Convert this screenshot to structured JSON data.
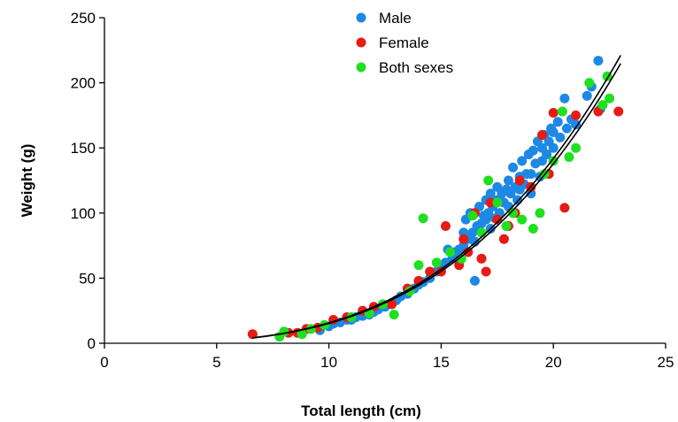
{
  "colors": {
    "male": "#1E88E5",
    "female": "#E51B14",
    "both": "#1FE01F",
    "fit": "#000000"
  },
  "chart_data": {
    "type": "scatter",
    "xlabel": "Total length (cm)",
    "ylabel": "Weight (g)",
    "xlim": [
      0,
      25
    ],
    "ylim": [
      0,
      250
    ],
    "xticks": [
      0,
      5,
      10,
      15,
      20,
      25
    ],
    "yticks": [
      0,
      50,
      100,
      150,
      200,
      250
    ],
    "grid": false,
    "legend_position": "top-center",
    "fit": {
      "model": "W = a * L^b",
      "curves": [
        {
          "a": 0.0105,
          "b": 3.175,
          "x_range": [
            6.6,
            23.0
          ]
        },
        {
          "a": 0.0102,
          "b": 3.175,
          "x_range": [
            6.6,
            23.0
          ]
        }
      ]
    },
    "series": [
      {
        "name": "Male",
        "color": "#1E88E5",
        "points": [
          [
            9.6,
            10
          ],
          [
            10.0,
            13
          ],
          [
            10.2,
            15
          ],
          [
            10.5,
            16
          ],
          [
            10.8,
            18
          ],
          [
            11.0,
            18
          ],
          [
            11.2,
            20
          ],
          [
            11.5,
            21
          ],
          [
            11.8,
            22
          ],
          [
            12.0,
            24
          ],
          [
            12.2,
            26
          ],
          [
            12.5,
            28
          ],
          [
            12.8,
            30
          ],
          [
            13.0,
            33
          ],
          [
            13.2,
            36
          ],
          [
            13.5,
            38
          ],
          [
            13.8,
            42
          ],
          [
            14.0,
            45
          ],
          [
            14.2,
            47
          ],
          [
            14.5,
            50
          ],
          [
            14.8,
            55
          ],
          [
            15.0,
            58
          ],
          [
            15.2,
            62
          ],
          [
            15.3,
            72
          ],
          [
            15.5,
            65
          ],
          [
            15.6,
            70
          ],
          [
            15.8,
            72
          ],
          [
            16.0,
            75
          ],
          [
            16.0,
            85
          ],
          [
            16.1,
            95
          ],
          [
            16.2,
            80
          ],
          [
            16.3,
            100
          ],
          [
            16.4,
            85
          ],
          [
            16.5,
            78
          ],
          [
            16.5,
            48
          ],
          [
            16.6,
            90
          ],
          [
            16.7,
            105
          ],
          [
            16.8,
            92
          ],
          [
            16.9,
            98
          ],
          [
            17.0,
            95
          ],
          [
            17.0,
            110
          ],
          [
            17.1,
            100
          ],
          [
            17.2,
            88
          ],
          [
            17.2,
            115
          ],
          [
            17.3,
            105
          ],
          [
            17.4,
            96
          ],
          [
            17.5,
            110
          ],
          [
            17.5,
            120
          ],
          [
            17.6,
            100
          ],
          [
            17.7,
            115
          ],
          [
            17.8,
            108
          ],
          [
            17.9,
            118
          ],
          [
            18.0,
            105
          ],
          [
            18.0,
            125
          ],
          [
            18.1,
            115
          ],
          [
            18.2,
            135
          ],
          [
            18.3,
            120
          ],
          [
            18.4,
            110
          ],
          [
            18.5,
            128
          ],
          [
            18.5,
            118
          ],
          [
            18.6,
            140
          ],
          [
            18.7,
            122
          ],
          [
            18.8,
            130
          ],
          [
            18.9,
            145
          ],
          [
            19.0,
            130
          ],
          [
            19.0,
            115
          ],
          [
            19.1,
            148
          ],
          [
            19.2,
            138
          ],
          [
            19.3,
            155
          ],
          [
            19.4,
            128
          ],
          [
            19.5,
            150
          ],
          [
            19.5,
            140
          ],
          [
            19.6,
            160
          ],
          [
            19.7,
            145
          ],
          [
            19.8,
            155
          ],
          [
            19.9,
            165
          ],
          [
            20.0,
            150
          ],
          [
            20.0,
            162
          ],
          [
            20.2,
            170
          ],
          [
            20.3,
            158
          ],
          [
            20.5,
            188
          ],
          [
            20.6,
            165
          ],
          [
            20.8,
            172
          ],
          [
            21.0,
            168
          ],
          [
            21.5,
            190
          ],
          [
            21.7,
            197
          ],
          [
            22.0,
            217
          ],
          [
            22.1,
            180
          ]
        ]
      },
      {
        "name": "Female",
        "color": "#E51B14",
        "points": [
          [
            6.6,
            7
          ],
          [
            8.2,
            8
          ],
          [
            8.6,
            8
          ],
          [
            9.0,
            11
          ],
          [
            9.5,
            12
          ],
          [
            10.2,
            18
          ],
          [
            10.8,
            20
          ],
          [
            11.5,
            25
          ],
          [
            12.0,
            28
          ],
          [
            12.8,
            30
          ],
          [
            13.5,
            42
          ],
          [
            14.0,
            48
          ],
          [
            14.5,
            55
          ],
          [
            15.0,
            55
          ],
          [
            15.2,
            90
          ],
          [
            15.8,
            60
          ],
          [
            16.0,
            80
          ],
          [
            16.2,
            70
          ],
          [
            16.5,
            100
          ],
          [
            16.8,
            65
          ],
          [
            17.0,
            55
          ],
          [
            17.2,
            108
          ],
          [
            17.5,
            95
          ],
          [
            17.8,
            80
          ],
          [
            18.0,
            90
          ],
          [
            18.3,
            100
          ],
          [
            18.5,
            125
          ],
          [
            19.0,
            120
          ],
          [
            19.5,
            160
          ],
          [
            19.8,
            130
          ],
          [
            20.0,
            177
          ],
          [
            20.5,
            104
          ],
          [
            21.0,
            175
          ],
          [
            22.0,
            178
          ],
          [
            22.9,
            178
          ]
        ]
      },
      {
        "name": "Both sexes",
        "color": "#1FE01F",
        "points": [
          [
            7.8,
            5
          ],
          [
            8.0,
            9
          ],
          [
            8.8,
            7
          ],
          [
            9.2,
            11
          ],
          [
            9.8,
            14
          ],
          [
            11.0,
            20
          ],
          [
            11.8,
            23
          ],
          [
            12.4,
            30
          ],
          [
            12.9,
            22
          ],
          [
            13.6,
            40
          ],
          [
            14.0,
            60
          ],
          [
            14.2,
            96
          ],
          [
            14.8,
            62
          ],
          [
            15.4,
            70
          ],
          [
            15.9,
            65
          ],
          [
            16.4,
            98
          ],
          [
            16.8,
            85
          ],
          [
            17.1,
            125
          ],
          [
            17.5,
            108
          ],
          [
            17.9,
            90
          ],
          [
            18.2,
            100
          ],
          [
            18.6,
            95
          ],
          [
            19.1,
            88
          ],
          [
            19.4,
            100
          ],
          [
            19.6,
            130
          ],
          [
            20.0,
            140
          ],
          [
            20.4,
            178
          ],
          [
            20.7,
            143
          ],
          [
            21.0,
            150
          ],
          [
            21.6,
            200
          ],
          [
            22.2,
            183
          ],
          [
            22.4,
            205
          ],
          [
            22.5,
            188
          ]
        ]
      }
    ]
  }
}
